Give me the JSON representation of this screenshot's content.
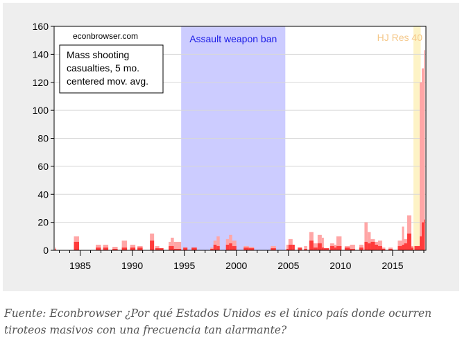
{
  "chart_data": {
    "type": "bar",
    "title": "",
    "xlabel": "",
    "ylabel": "",
    "xlim": [
      1982.5,
      2018.2
    ],
    "ylim": [
      0,
      160
    ],
    "yticks": [
      0,
      20,
      40,
      60,
      80,
      100,
      120,
      140,
      160
    ],
    "xticks": [
      1985,
      1990,
      1995,
      2000,
      2005,
      2010,
      2015
    ],
    "grid": true,
    "watermark": "econbrowser.com",
    "legend_box": "Mass shooting casualties, 5 mo. centered mov. avg.",
    "legend_lines": [
      "Mass shooting",
      "casualties, 5 mo.",
      "centered mov. avg."
    ],
    "annotations": [
      {
        "label": "Assault weapon ban",
        "start": 1994.7,
        "end": 2004.7,
        "color": "#ccccff",
        "text_color": "#1a1ae6"
      },
      {
        "label": "HJ Res 40",
        "start": 2017.0,
        "end": 2017.7,
        "color": "#fdf3c6",
        "text_color": "#f5c88a"
      }
    ],
    "series_colors": {
      "casualties": "#ffa6a6",
      "fatalities": "#ff3b3b"
    },
    "segments": [
      [
        1982.6,
        1982.7,
        2,
        1
      ],
      [
        1984.4,
        1984.9,
        10,
        6
      ],
      [
        1986.5,
        1987.0,
        4,
        2
      ],
      [
        1987.2,
        1987.7,
        4,
        2
      ],
      [
        1988.1,
        1988.6,
        2.5,
        1
      ],
      [
        1989.0,
        1989.5,
        7,
        2
      ],
      [
        1989.8,
        1990.3,
        4,
        2
      ],
      [
        1990.5,
        1991.0,
        3,
        2
      ],
      [
        1991.7,
        1992.1,
        12,
        7
      ],
      [
        1992.2,
        1992.6,
        3,
        1.5
      ],
      [
        1992.6,
        1993.0,
        1.5,
        1.5
      ],
      [
        1993.5,
        1993.7,
        6,
        3
      ],
      [
        1993.7,
        1994.0,
        9,
        3
      ],
      [
        1994.0,
        1994.7,
        6,
        1
      ],
      [
        1994.9,
        1995.3,
        2,
        2
      ],
      [
        1995.7,
        1996.2,
        2,
        2
      ],
      [
        1997.5,
        1997.8,
        2,
        1
      ],
      [
        1997.8,
        1998.1,
        7,
        4
      ],
      [
        1998.1,
        1998.4,
        10,
        3
      ],
      [
        1999.0,
        1999.3,
        8,
        4
      ],
      [
        1999.3,
        1999.6,
        11,
        5
      ],
      [
        1999.6,
        2000.0,
        7,
        3
      ],
      [
        2000.7,
        2001.2,
        3,
        2
      ],
      [
        2001.2,
        2001.7,
        2.5,
        1.5
      ],
      [
        2003.3,
        2003.8,
        3,
        1.5
      ],
      [
        2004.8,
        2005.0,
        4,
        1
      ],
      [
        2005.0,
        2005.4,
        8,
        4
      ],
      [
        2005.4,
        2005.6,
        4,
        4
      ],
      [
        2005.9,
        2006.3,
        2,
        2
      ],
      [
        2006.5,
        2006.8,
        3,
        1
      ],
      [
        2007.0,
        2007.4,
        13,
        7
      ],
      [
        2007.4,
        2007.8,
        5,
        2
      ],
      [
        2007.8,
        2008.2,
        11,
        5
      ],
      [
        2008.2,
        2008.4,
        9,
        2
      ],
      [
        2008.4,
        2008.9,
        1.5,
        1.5
      ],
      [
        2009.0,
        2009.4,
        5,
        3
      ],
      [
        2009.4,
        2009.6,
        4,
        2
      ],
      [
        2009.6,
        2010.1,
        10,
        3
      ],
      [
        2010.4,
        2010.9,
        3,
        2
      ],
      [
        2010.9,
        2011.4,
        4,
        1
      ],
      [
        2011.8,
        2012.2,
        4,
        2
      ],
      [
        2012.3,
        2012.6,
        20,
        6
      ],
      [
        2012.6,
        2012.9,
        13,
        5
      ],
      [
        2012.9,
        2013.3,
        8,
        6
      ],
      [
        2013.3,
        2013.6,
        6,
        4
      ],
      [
        2013.6,
        2014.0,
        7,
        3
      ],
      [
        2014.0,
        2014.3,
        2,
        1
      ],
      [
        2014.6,
        2015.0,
        2,
        1
      ],
      [
        2015.5,
        2015.9,
        7,
        3
      ],
      [
        2015.9,
        2016.1,
        17,
        4
      ],
      [
        2016.1,
        2016.4,
        8,
        5
      ],
      [
        2016.4,
        2016.8,
        25,
        12
      ],
      [
        2016.8,
        2017.0,
        3,
        2
      ],
      [
        2017.1,
        2017.6,
        3,
        3
      ],
      [
        2017.6,
        2017.8,
        120,
        10
      ],
      [
        2017.8,
        2018.0,
        130,
        20
      ],
      [
        2018.0,
        2018.1,
        143,
        22
      ]
    ]
  },
  "caption": "Fuente: Econbrowser ¿Por qué Estados Unidos es el único país donde ocurren tiroteos masivos con una frecuencia tan alarmante?"
}
